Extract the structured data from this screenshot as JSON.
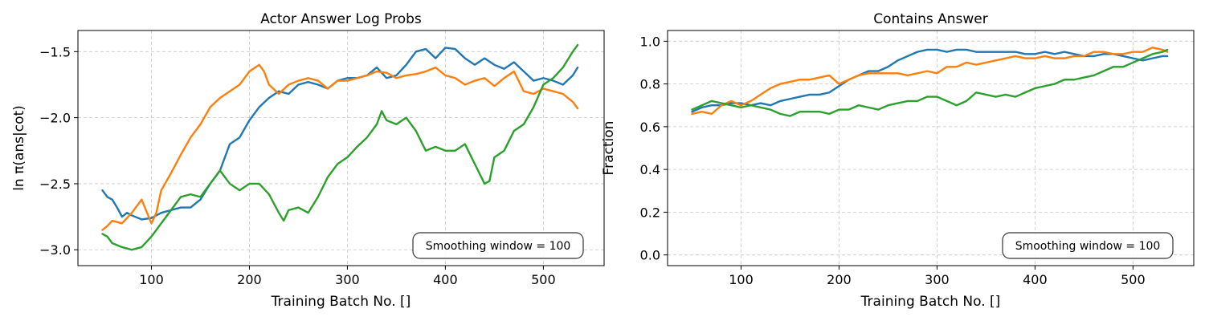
{
  "chart_data": [
    {
      "type": "line",
      "title": "Actor Answer Log Probs",
      "xlabel": "Training Batch No. []",
      "ylabel": "ln π(ans|cot)",
      "xlim": [
        25,
        562
      ],
      "ylim": [
        -3.12,
        -1.34
      ],
      "xticks": [
        100,
        200,
        300,
        400,
        500
      ],
      "yticks": [
        -3.0,
        -2.5,
        -2.0,
        -1.5
      ],
      "ytick_labels": [
        "−3.0",
        "−2.5",
        "−2.0",
        "−1.5"
      ],
      "grid": true,
      "annotation": "Smoothing window = 100",
      "annotation_position": "bottom-right",
      "series": [
        {
          "color": "#1f77b4",
          "x": [
            50,
            55,
            60,
            65,
            70,
            75,
            80,
            90,
            100,
            110,
            120,
            130,
            140,
            150,
            160,
            170,
            175,
            180,
            190,
            200,
            210,
            220,
            230,
            240,
            250,
            260,
            270,
            280,
            290,
            300,
            310,
            320,
            330,
            340,
            350,
            360,
            370,
            380,
            390,
            400,
            410,
            420,
            430,
            440,
            450,
            460,
            470,
            480,
            490,
            500,
            510,
            520,
            530,
            535
          ],
          "y": [
            -2.55,
            -2.6,
            -2.62,
            -2.68,
            -2.75,
            -2.72,
            -2.74,
            -2.77,
            -2.76,
            -2.72,
            -2.7,
            -2.68,
            -2.68,
            -2.62,
            -2.5,
            -2.4,
            -2.3,
            -2.2,
            -2.15,
            -2.02,
            -1.92,
            -1.85,
            -1.8,
            -1.82,
            -1.75,
            -1.73,
            -1.75,
            -1.78,
            -1.72,
            -1.7,
            -1.7,
            -1.68,
            -1.62,
            -1.7,
            -1.68,
            -1.6,
            -1.5,
            -1.48,
            -1.55,
            -1.47,
            -1.48,
            -1.55,
            -1.6,
            -1.55,
            -1.6,
            -1.63,
            -1.58,
            -1.65,
            -1.72,
            -1.7,
            -1.72,
            -1.75,
            -1.68,
            -1.62
          ]
        },
        {
          "color": "#ff7f0e",
          "x": [
            50,
            55,
            60,
            70,
            80,
            90,
            100,
            105,
            110,
            120,
            130,
            140,
            150,
            160,
            170,
            180,
            190,
            200,
            210,
            215,
            220,
            230,
            240,
            250,
            260,
            270,
            280,
            290,
            300,
            310,
            320,
            330,
            340,
            350,
            360,
            370,
            380,
            390,
            400,
            410,
            420,
            430,
            440,
            450,
            460,
            470,
            480,
            490,
            500,
            510,
            520,
            530,
            535
          ],
          "y": [
            -2.85,
            -2.82,
            -2.78,
            -2.8,
            -2.72,
            -2.62,
            -2.8,
            -2.72,
            -2.55,
            -2.42,
            -2.28,
            -2.15,
            -2.05,
            -1.92,
            -1.85,
            -1.8,
            -1.75,
            -1.65,
            -1.6,
            -1.65,
            -1.75,
            -1.82,
            -1.75,
            -1.72,
            -1.7,
            -1.72,
            -1.78,
            -1.72,
            -1.72,
            -1.7,
            -1.68,
            -1.65,
            -1.66,
            -1.7,
            -1.68,
            -1.67,
            -1.65,
            -1.62,
            -1.68,
            -1.7,
            -1.75,
            -1.72,
            -1.7,
            -1.76,
            -1.7,
            -1.65,
            -1.8,
            -1.82,
            -1.78,
            -1.8,
            -1.82,
            -1.88,
            -1.93
          ]
        },
        {
          "color": "#2ca02c",
          "x": [
            50,
            55,
            60,
            70,
            80,
            90,
            100,
            110,
            120,
            130,
            140,
            150,
            160,
            170,
            180,
            190,
            200,
            210,
            220,
            230,
            235,
            240,
            250,
            260,
            270,
            280,
            290,
            300,
            310,
            320,
            330,
            335,
            340,
            350,
            360,
            370,
            380,
            390,
            400,
            410,
            420,
            430,
            440,
            445,
            450,
            460,
            470,
            480,
            490,
            500,
            510,
            520,
            530,
            535
          ],
          "y": [
            -2.88,
            -2.9,
            -2.95,
            -2.98,
            -3.0,
            -2.98,
            -2.9,
            -2.8,
            -2.7,
            -2.6,
            -2.58,
            -2.6,
            -2.5,
            -2.4,
            -2.5,
            -2.55,
            -2.5,
            -2.5,
            -2.58,
            -2.72,
            -2.78,
            -2.7,
            -2.68,
            -2.72,
            -2.6,
            -2.45,
            -2.35,
            -2.3,
            -2.22,
            -2.15,
            -2.05,
            -1.95,
            -2.02,
            -2.05,
            -2.0,
            -2.1,
            -2.25,
            -2.22,
            -2.25,
            -2.25,
            -2.2,
            -2.35,
            -2.5,
            -2.48,
            -2.3,
            -2.25,
            -2.1,
            -2.05,
            -1.92,
            -1.75,
            -1.7,
            -1.62,
            -1.5,
            -1.45
          ]
        }
      ]
    },
    {
      "type": "line",
      "title": "Contains Answer",
      "xlabel": "Training Batch No. []",
      "ylabel": "Fraction",
      "xlim": [
        25,
        562
      ],
      "ylim": [
        -0.05,
        1.05
      ],
      "xticks": [
        100,
        200,
        300,
        400,
        500
      ],
      "yticks": [
        0.0,
        0.2,
        0.4,
        0.6,
        0.8,
        1.0
      ],
      "ytick_labels": [
        "0.0",
        "0.2",
        "0.4",
        "0.6",
        "0.8",
        "1.0"
      ],
      "grid": true,
      "annotation": "Smoothing window = 100",
      "annotation_position": "bottom-right",
      "series": [
        {
          "color": "#1f77b4",
          "x": [
            50,
            60,
            70,
            80,
            90,
            100,
            110,
            120,
            130,
            140,
            150,
            160,
            170,
            180,
            190,
            200,
            210,
            220,
            230,
            240,
            250,
            260,
            270,
            280,
            290,
            300,
            310,
            320,
            330,
            340,
            350,
            360,
            370,
            380,
            390,
            400,
            410,
            420,
            430,
            440,
            450,
            460,
            470,
            480,
            490,
            500,
            510,
            520,
            530,
            535
          ],
          "y": [
            0.67,
            0.69,
            0.7,
            0.7,
            0.71,
            0.71,
            0.7,
            0.71,
            0.7,
            0.72,
            0.73,
            0.74,
            0.75,
            0.75,
            0.76,
            0.79,
            0.82,
            0.84,
            0.86,
            0.86,
            0.88,
            0.91,
            0.93,
            0.95,
            0.96,
            0.96,
            0.95,
            0.96,
            0.96,
            0.95,
            0.95,
            0.95,
            0.95,
            0.95,
            0.94,
            0.94,
            0.95,
            0.94,
            0.95,
            0.94,
            0.93,
            0.93,
            0.94,
            0.94,
            0.93,
            0.92,
            0.91,
            0.92,
            0.93,
            0.93
          ]
        },
        {
          "color": "#ff7f0e",
          "x": [
            50,
            60,
            70,
            80,
            90,
            100,
            110,
            120,
            130,
            140,
            150,
            160,
            170,
            180,
            190,
            200,
            210,
            220,
            230,
            240,
            250,
            260,
            270,
            280,
            290,
            300,
            310,
            320,
            330,
            340,
            350,
            360,
            370,
            380,
            390,
            400,
            410,
            420,
            430,
            440,
            450,
            460,
            470,
            480,
            490,
            500,
            510,
            520,
            530,
            535
          ],
          "y": [
            0.66,
            0.67,
            0.66,
            0.7,
            0.72,
            0.7,
            0.72,
            0.75,
            0.78,
            0.8,
            0.81,
            0.82,
            0.82,
            0.83,
            0.84,
            0.8,
            0.82,
            0.84,
            0.85,
            0.85,
            0.85,
            0.85,
            0.84,
            0.85,
            0.86,
            0.85,
            0.88,
            0.88,
            0.9,
            0.89,
            0.9,
            0.91,
            0.92,
            0.93,
            0.92,
            0.92,
            0.93,
            0.92,
            0.92,
            0.93,
            0.93,
            0.95,
            0.95,
            0.94,
            0.94,
            0.95,
            0.95,
            0.97,
            0.96,
            0.95
          ]
        },
        {
          "color": "#2ca02c",
          "x": [
            50,
            60,
            70,
            80,
            90,
            100,
            110,
            120,
            130,
            140,
            150,
            160,
            170,
            180,
            190,
            200,
            210,
            220,
            230,
            240,
            250,
            260,
            270,
            280,
            290,
            300,
            310,
            320,
            330,
            340,
            350,
            360,
            370,
            380,
            390,
            400,
            410,
            420,
            430,
            440,
            450,
            460,
            470,
            480,
            490,
            500,
            510,
            520,
            530,
            535
          ],
          "y": [
            0.68,
            0.7,
            0.72,
            0.71,
            0.7,
            0.69,
            0.7,
            0.69,
            0.68,
            0.66,
            0.65,
            0.67,
            0.67,
            0.67,
            0.66,
            0.68,
            0.68,
            0.7,
            0.69,
            0.68,
            0.7,
            0.71,
            0.72,
            0.72,
            0.74,
            0.74,
            0.72,
            0.7,
            0.72,
            0.76,
            0.75,
            0.74,
            0.75,
            0.74,
            0.76,
            0.78,
            0.79,
            0.8,
            0.82,
            0.82,
            0.83,
            0.84,
            0.86,
            0.88,
            0.88,
            0.9,
            0.92,
            0.94,
            0.95,
            0.96
          ]
        }
      ]
    }
  ]
}
